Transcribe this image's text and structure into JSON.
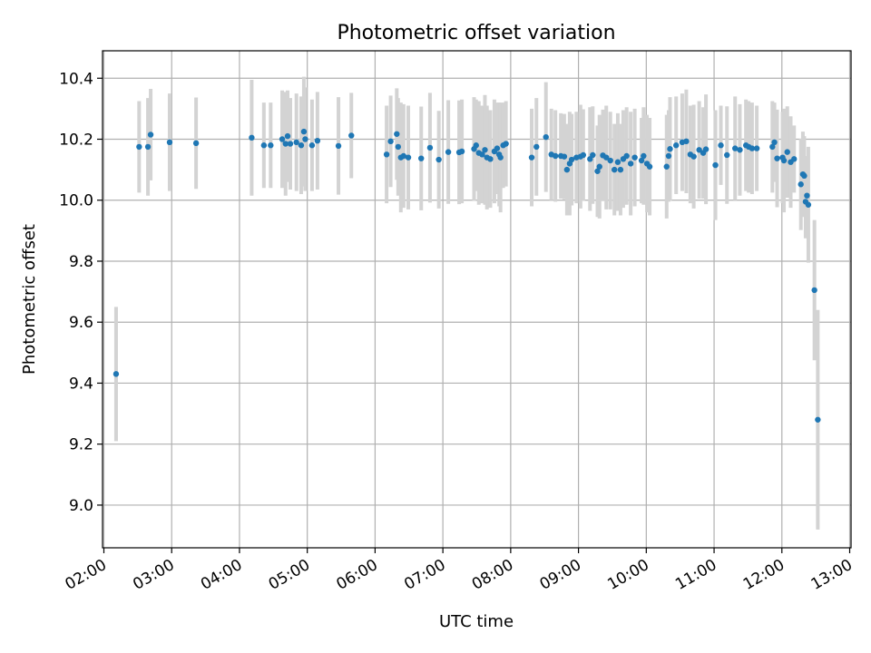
{
  "chart_data": {
    "type": "scatter",
    "title": "Photometric offset variation",
    "xlabel": "UTC time",
    "ylabel": "Photometric offset",
    "grid": true,
    "xlim_hours": [
      1.98,
      13.02
    ],
    "ylim": [
      8.86,
      10.49
    ],
    "x_ticks": [
      {
        "hour": 2,
        "label": "02:00"
      },
      {
        "hour": 3,
        "label": "03:00"
      },
      {
        "hour": 4,
        "label": "04:00"
      },
      {
        "hour": 5,
        "label": "05:00"
      },
      {
        "hour": 6,
        "label": "06:00"
      },
      {
        "hour": 7,
        "label": "07:00"
      },
      {
        "hour": 8,
        "label": "08:00"
      },
      {
        "hour": 9,
        "label": "09:00"
      },
      {
        "hour": 10,
        "label": "10:00"
      },
      {
        "hour": 11,
        "label": "11:00"
      },
      {
        "hour": 12,
        "label": "12:00"
      },
      {
        "hour": 13,
        "label": "13:00"
      }
    ],
    "y_ticks": [
      {
        "value": 9.0,
        "label": "9.0"
      },
      {
        "value": 9.2,
        "label": "9.2"
      },
      {
        "value": 9.4,
        "label": "9.4"
      },
      {
        "value": 9.6,
        "label": "9.6"
      },
      {
        "value": 9.8,
        "label": "9.8"
      },
      {
        "value": 10.0,
        "label": "10.0"
      },
      {
        "value": 10.2,
        "label": "10.2"
      },
      {
        "value": 10.4,
        "label": "10.4"
      }
    ],
    "colors": {
      "marker": "#1f77b4",
      "errorbar": "#d3d3d3",
      "grid": "#b0b0b0"
    },
    "points": [
      [
        2.18,
        9.43,
        0.22
      ],
      [
        2.52,
        10.175,
        0.15
      ],
      [
        2.65,
        10.175,
        0.16
      ],
      [
        2.69,
        10.215,
        0.15
      ],
      [
        2.97,
        10.19,
        0.16
      ],
      [
        3.36,
        10.187,
        0.15
      ],
      [
        4.18,
        10.205,
        0.19
      ],
      [
        4.36,
        10.18,
        0.14
      ],
      [
        4.46,
        10.18,
        0.14
      ],
      [
        4.63,
        10.2,
        0.16
      ],
      [
        4.68,
        10.185,
        0.17
      ],
      [
        4.71,
        10.21,
        0.15
      ],
      [
        4.75,
        10.185,
        0.15
      ],
      [
        4.84,
        10.19,
        0.16
      ],
      [
        4.91,
        10.18,
        0.16
      ],
      [
        4.95,
        10.225,
        0.18
      ],
      [
        4.97,
        10.2,
        0.17
      ],
      [
        5.07,
        10.18,
        0.15
      ],
      [
        5.15,
        10.195,
        0.16
      ],
      [
        5.46,
        10.178,
        0.16
      ],
      [
        5.65,
        10.212,
        0.14
      ],
      [
        6.17,
        10.15,
        0.16
      ],
      [
        6.23,
        10.193,
        0.15
      ],
      [
        6.32,
        10.217,
        0.15
      ],
      [
        6.34,
        10.175,
        0.16
      ],
      [
        6.38,
        10.14,
        0.18
      ],
      [
        6.42,
        10.145,
        0.17
      ],
      [
        6.49,
        10.14,
        0.17
      ],
      [
        6.68,
        10.137,
        0.17
      ],
      [
        6.81,
        10.172,
        0.18
      ],
      [
        6.94,
        10.133,
        0.16
      ],
      [
        7.08,
        10.158,
        0.17
      ],
      [
        7.24,
        10.157,
        0.17
      ],
      [
        7.28,
        10.16,
        0.17
      ],
      [
        7.46,
        10.168,
        0.17
      ],
      [
        7.49,
        10.18,
        0.15
      ],
      [
        7.53,
        10.155,
        0.17
      ],
      [
        7.58,
        10.15,
        0.16
      ],
      [
        7.62,
        10.165,
        0.18
      ],
      [
        7.65,
        10.14,
        0.17
      ],
      [
        7.7,
        10.135,
        0.16
      ],
      [
        7.76,
        10.16,
        0.17
      ],
      [
        7.8,
        10.17,
        0.15
      ],
      [
        7.83,
        10.15,
        0.17
      ],
      [
        7.85,
        10.14,
        0.18
      ],
      [
        7.89,
        10.18,
        0.14
      ],
      [
        7.93,
        10.185,
        0.14
      ],
      [
        8.31,
        10.14,
        0.16
      ],
      [
        8.38,
        10.175,
        0.16
      ],
      [
        8.52,
        10.207,
        0.18
      ],
      [
        8.6,
        10.15,
        0.15
      ],
      [
        8.66,
        10.145,
        0.15
      ],
      [
        8.74,
        10.145,
        0.14
      ],
      [
        8.79,
        10.143,
        0.14
      ],
      [
        8.83,
        10.1,
        0.15
      ],
      [
        8.87,
        10.12,
        0.17
      ],
      [
        8.9,
        10.133,
        0.15
      ],
      [
        8.97,
        10.14,
        0.15
      ],
      [
        9.03,
        10.143,
        0.17
      ],
      [
        9.07,
        10.148,
        0.15
      ],
      [
        9.17,
        10.135,
        0.17
      ],
      [
        9.21,
        10.148,
        0.16
      ],
      [
        9.28,
        10.095,
        0.15
      ],
      [
        9.31,
        10.11,
        0.17
      ],
      [
        9.36,
        10.147,
        0.15
      ],
      [
        9.41,
        10.14,
        0.17
      ],
      [
        9.47,
        10.13,
        0.16
      ],
      [
        9.53,
        10.1,
        0.15
      ],
      [
        9.58,
        10.125,
        0.16
      ],
      [
        9.62,
        10.1,
        0.15
      ],
      [
        9.66,
        10.135,
        0.16
      ],
      [
        9.71,
        10.145,
        0.16
      ],
      [
        9.77,
        10.12,
        0.17
      ],
      [
        9.83,
        10.14,
        0.16
      ],
      [
        9.93,
        10.13,
        0.14
      ],
      [
        9.96,
        10.145,
        0.16
      ],
      [
        10.01,
        10.12,
        0.16
      ],
      [
        10.05,
        10.11,
        0.16
      ],
      [
        10.3,
        10.11,
        0.17
      ],
      [
        10.33,
        10.145,
        0.15
      ],
      [
        10.35,
        10.168,
        0.17
      ],
      [
        10.44,
        10.18,
        0.16
      ],
      [
        10.53,
        10.19,
        0.16
      ],
      [
        10.59,
        10.193,
        0.17
      ],
      [
        10.65,
        10.15,
        0.16
      ],
      [
        10.7,
        10.143,
        0.17
      ],
      [
        10.78,
        10.165,
        0.16
      ],
      [
        10.84,
        10.155,
        0.15
      ],
      [
        10.88,
        10.167,
        0.18
      ],
      [
        11.02,
        10.115,
        0.18
      ],
      [
        11.1,
        10.18,
        0.13
      ],
      [
        11.19,
        10.148,
        0.16
      ],
      [
        11.31,
        10.17,
        0.17
      ],
      [
        11.38,
        10.165,
        0.15
      ],
      [
        11.47,
        10.18,
        0.15
      ],
      [
        11.51,
        10.175,
        0.15
      ],
      [
        11.56,
        10.17,
        0.15
      ],
      [
        11.63,
        10.17,
        0.14
      ],
      [
        11.86,
        10.175,
        0.15
      ],
      [
        11.89,
        10.19,
        0.13
      ],
      [
        11.93,
        10.137,
        0.16
      ],
      [
        12.01,
        10.14,
        0.15
      ],
      [
        12.03,
        10.13,
        0.17
      ],
      [
        12.08,
        10.158,
        0.15
      ],
      [
        12.13,
        10.125,
        0.15
      ],
      [
        12.18,
        10.135,
        0.11
      ],
      [
        12.28,
        10.052,
        0.15
      ],
      [
        12.31,
        10.085,
        0.14
      ],
      [
        12.33,
        10.08,
        0.13
      ],
      [
        12.35,
        9.995,
        0.12
      ],
      [
        12.37,
        10.015,
        0.13
      ],
      [
        12.39,
        9.985,
        0.19
      ],
      [
        12.48,
        9.705,
        0.23
      ],
      [
        12.53,
        9.28,
        0.36
      ]
    ]
  }
}
